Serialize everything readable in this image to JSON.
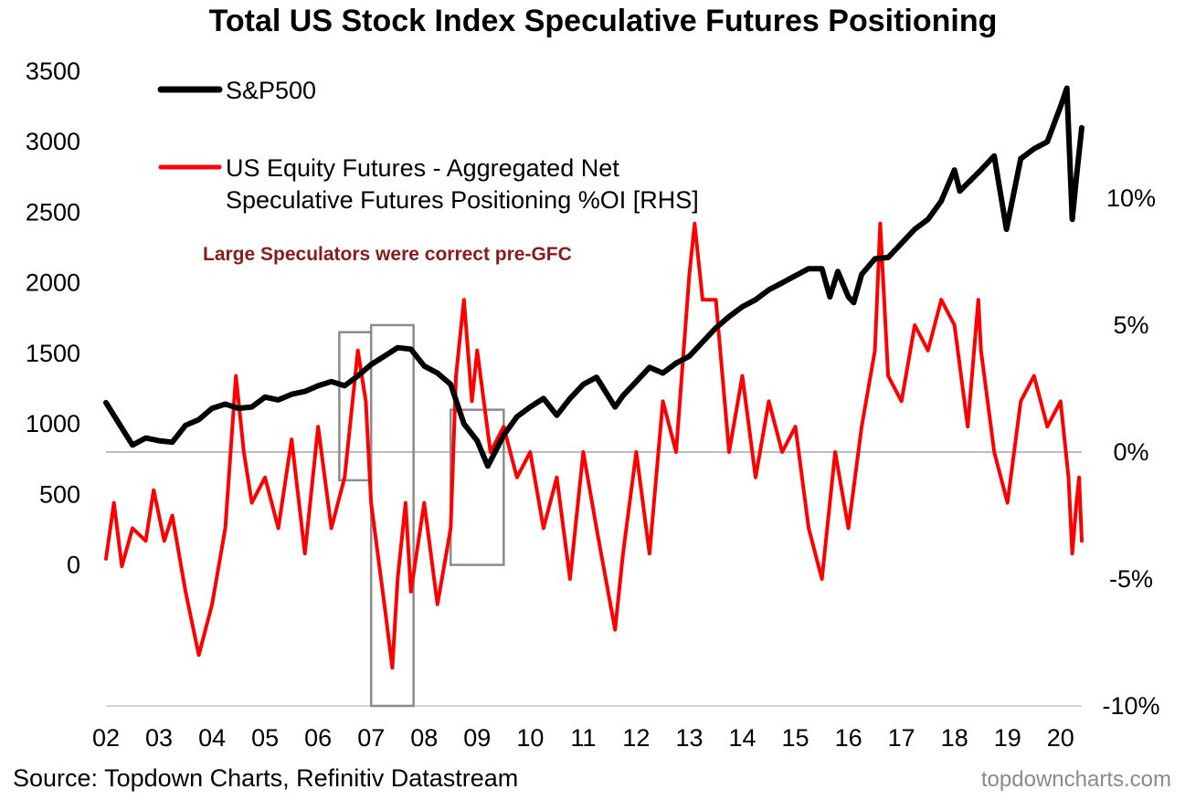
{
  "chart_data": {
    "type": "line",
    "title": "Total US Stock Index Speculative Futures Positioning",
    "x_tick_labels": [
      "02",
      "03",
      "04",
      "05",
      "06",
      "07",
      "08",
      "09",
      "10",
      "11",
      "12",
      "13",
      "14",
      "15",
      "16",
      "17",
      "18",
      "19",
      "20"
    ],
    "x_tick_years": [
      2002,
      2003,
      2004,
      2005,
      2006,
      2007,
      2008,
      2009,
      2010,
      2011,
      2012,
      2013,
      2014,
      2015,
      2016,
      2017,
      2018,
      2019,
      2020
    ],
    "xlim": [
      2002,
      2020.4
    ],
    "left_axis": {
      "ylim": [
        -1000,
        3500
      ],
      "ticks": [
        3500,
        3000,
        2500,
        2000,
        1500,
        1000,
        500,
        0
      ],
      "tick_labels": [
        "3500",
        "3000",
        "2500",
        "2000",
        "1500",
        "1000",
        "500",
        "0"
      ]
    },
    "right_axis": {
      "ylim": [
        -10,
        15
      ],
      "ticks": [
        10,
        5,
        0,
        -5,
        -10
      ],
      "tick_labels": [
        "10%",
        "5%",
        "0%",
        "-5%",
        "-10%"
      ]
    },
    "series": [
      {
        "name": "S&P500",
        "axis": "left",
        "color": "#000000",
        "points": [
          [
            2002.0,
            1150
          ],
          [
            2002.25,
            1000
          ],
          [
            2002.5,
            850
          ],
          [
            2002.75,
            900
          ],
          [
            2003.0,
            880
          ],
          [
            2003.25,
            870
          ],
          [
            2003.5,
            990
          ],
          [
            2003.75,
            1030
          ],
          [
            2004.0,
            1110
          ],
          [
            2004.25,
            1140
          ],
          [
            2004.5,
            1110
          ],
          [
            2004.75,
            1120
          ],
          [
            2005.0,
            1190
          ],
          [
            2005.25,
            1170
          ],
          [
            2005.5,
            1210
          ],
          [
            2005.75,
            1230
          ],
          [
            2006.0,
            1270
          ],
          [
            2006.25,
            1300
          ],
          [
            2006.5,
            1270
          ],
          [
            2006.75,
            1340
          ],
          [
            2007.0,
            1420
          ],
          [
            2007.25,
            1480
          ],
          [
            2007.5,
            1540
          ],
          [
            2007.75,
            1530
          ],
          [
            2008.0,
            1410
          ],
          [
            2008.25,
            1360
          ],
          [
            2008.5,
            1280
          ],
          [
            2008.75,
            1000
          ],
          [
            2009.0,
            880
          ],
          [
            2009.2,
            700
          ],
          [
            2009.5,
            920
          ],
          [
            2009.75,
            1050
          ],
          [
            2010.0,
            1120
          ],
          [
            2010.25,
            1180
          ],
          [
            2010.5,
            1060
          ],
          [
            2010.75,
            1180
          ],
          [
            2011.0,
            1280
          ],
          [
            2011.25,
            1330
          ],
          [
            2011.6,
            1120
          ],
          [
            2011.75,
            1200
          ],
          [
            2012.0,
            1300
          ],
          [
            2012.25,
            1400
          ],
          [
            2012.5,
            1360
          ],
          [
            2012.75,
            1430
          ],
          [
            2013.0,
            1480
          ],
          [
            2013.25,
            1580
          ],
          [
            2013.5,
            1680
          ],
          [
            2013.75,
            1760
          ],
          [
            2014.0,
            1830
          ],
          [
            2014.25,
            1880
          ],
          [
            2014.5,
            1950
          ],
          [
            2014.75,
            2000
          ],
          [
            2015.0,
            2050
          ],
          [
            2015.25,
            2100
          ],
          [
            2015.5,
            2100
          ],
          [
            2015.65,
            1900
          ],
          [
            2015.8,
            2080
          ],
          [
            2016.0,
            1900
          ],
          [
            2016.1,
            1860
          ],
          [
            2016.25,
            2060
          ],
          [
            2016.5,
            2170
          ],
          [
            2016.75,
            2180
          ],
          [
            2017.0,
            2280
          ],
          [
            2017.25,
            2380
          ],
          [
            2017.5,
            2450
          ],
          [
            2017.75,
            2580
          ],
          [
            2018.0,
            2800
          ],
          [
            2018.1,
            2650
          ],
          [
            2018.5,
            2800
          ],
          [
            2018.75,
            2900
          ],
          [
            2018.98,
            2380
          ],
          [
            2019.25,
            2880
          ],
          [
            2019.5,
            2950
          ],
          [
            2019.75,
            3000
          ],
          [
            2020.0,
            3250
          ],
          [
            2020.12,
            3380
          ],
          [
            2020.22,
            2450
          ],
          [
            2020.3,
            2750
          ],
          [
            2020.4,
            3100
          ]
        ]
      },
      {
        "name": "US Equity Futures - Aggregated Net Speculative Futures Positioning %OI [RHS]",
        "axis": "right",
        "color": "#ff0000",
        "points": [
          [
            2002.0,
            -4.2
          ],
          [
            2002.15,
            -2
          ],
          [
            2002.3,
            -4.5
          ],
          [
            2002.5,
            -3
          ],
          [
            2002.75,
            -3.5
          ],
          [
            2002.9,
            -1.5
          ],
          [
            2003.1,
            -3.5
          ],
          [
            2003.25,
            -2.5
          ],
          [
            2003.5,
            -5.5
          ],
          [
            2003.75,
            -8
          ],
          [
            2004.0,
            -6
          ],
          [
            2004.25,
            -3
          ],
          [
            2004.45,
            3
          ],
          [
            2004.6,
            0
          ],
          [
            2004.75,
            -2
          ],
          [
            2005.0,
            -1
          ],
          [
            2005.25,
            -3
          ],
          [
            2005.5,
            0.5
          ],
          [
            2005.75,
            -4
          ],
          [
            2006.0,
            1
          ],
          [
            2006.25,
            -3
          ],
          [
            2006.5,
            -1
          ],
          [
            2006.75,
            4
          ],
          [
            2006.9,
            2
          ],
          [
            2007.0,
            -2
          ],
          [
            2007.25,
            -6
          ],
          [
            2007.4,
            -8.5
          ],
          [
            2007.5,
            -5
          ],
          [
            2007.65,
            -2
          ],
          [
            2007.75,
            -5.5
          ],
          [
            2008.0,
            -2
          ],
          [
            2008.25,
            -6
          ],
          [
            2008.5,
            -3
          ],
          [
            2008.6,
            3
          ],
          [
            2008.75,
            6
          ],
          [
            2008.9,
            2
          ],
          [
            2009.0,
            4
          ],
          [
            2009.25,
            0
          ],
          [
            2009.5,
            1
          ],
          [
            2009.75,
            -1
          ],
          [
            2010.0,
            0
          ],
          [
            2010.25,
            -3
          ],
          [
            2010.5,
            -1
          ],
          [
            2010.75,
            -5
          ],
          [
            2011.0,
            0
          ],
          [
            2011.25,
            -3
          ],
          [
            2011.6,
            -7
          ],
          [
            2011.75,
            -4
          ],
          [
            2012.0,
            0
          ],
          [
            2012.25,
            -4
          ],
          [
            2012.5,
            2
          ],
          [
            2012.75,
            0
          ],
          [
            2013.0,
            7
          ],
          [
            2013.1,
            9
          ],
          [
            2013.25,
            6
          ],
          [
            2013.5,
            6
          ],
          [
            2013.75,
            0
          ],
          [
            2014.0,
            3
          ],
          [
            2014.25,
            -1
          ],
          [
            2014.5,
            2
          ],
          [
            2014.75,
            0
          ],
          [
            2015.0,
            1
          ],
          [
            2015.25,
            -3
          ],
          [
            2015.5,
            -5
          ],
          [
            2015.75,
            0
          ],
          [
            2016.0,
            -3
          ],
          [
            2016.25,
            1
          ],
          [
            2016.5,
            4
          ],
          [
            2016.6,
            9
          ],
          [
            2016.75,
            3
          ],
          [
            2017.0,
            2
          ],
          [
            2017.25,
            5
          ],
          [
            2017.5,
            4
          ],
          [
            2017.75,
            6
          ],
          [
            2018.0,
            5
          ],
          [
            2018.25,
            1
          ],
          [
            2018.45,
            6
          ],
          [
            2018.5,
            4
          ],
          [
            2018.75,
            0
          ],
          [
            2019.0,
            -2
          ],
          [
            2019.25,
            2
          ],
          [
            2019.5,
            3
          ],
          [
            2019.75,
            1
          ],
          [
            2020.0,
            2
          ],
          [
            2020.15,
            -1
          ],
          [
            2020.22,
            -4
          ],
          [
            2020.3,
            -2
          ],
          [
            2020.35,
            -1
          ],
          [
            2020.4,
            -3.5
          ]
        ]
      }
    ],
    "annotation": "Large Speculators were correct pre-GFC",
    "highlight_boxes": [
      {
        "x": [
          2006.4,
          2007.0
        ],
        "y_left": [
          600,
          1650
        ]
      },
      {
        "x": [
          2007.0,
          2007.8
        ],
        "y_left": [
          -1000,
          1700
        ]
      },
      {
        "x": [
          2008.5,
          2009.5
        ],
        "y_left": [
          0,
          1100
        ]
      }
    ],
    "zero_line_right": 0,
    "legend": "top-left"
  },
  "source": "Source: Topdown Charts, Refinitiv Datastream",
  "credit": "topdowncharts.com"
}
